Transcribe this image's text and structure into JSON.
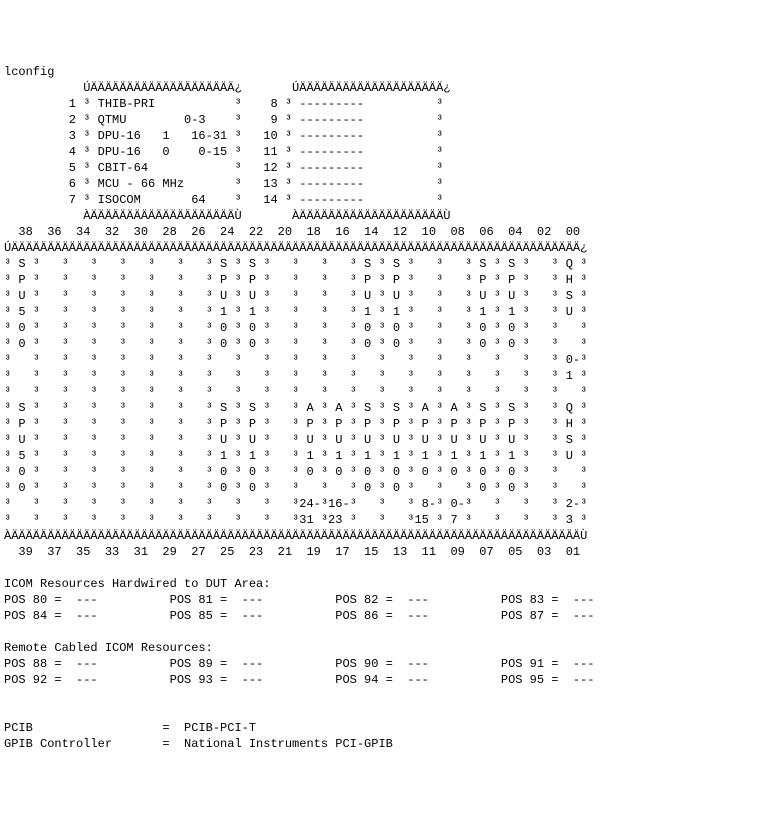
{
  "command": "lconfig",
  "left_box": {
    "rows": [
      {
        "n": "1",
        "label": "THIB-PRI",
        "extra": ""
      },
      {
        "n": "2",
        "label": "QTMU",
        "extra": "0-3"
      },
      {
        "n": "3",
        "label": "DPU-16   1   16-31",
        "extra": ""
      },
      {
        "n": "4",
        "label": "DPU-16   0    0-15",
        "extra": ""
      },
      {
        "n": "5",
        "label": "CBIT-64",
        "extra": ""
      },
      {
        "n": "6",
        "label": "MCU - 66 MHz",
        "extra": ""
      },
      {
        "n": "7",
        "label": "ISOCOM       64",
        "extra": ""
      }
    ]
  },
  "right_box": {
    "rows": [
      {
        "n": "8",
        "label": "---------"
      },
      {
        "n": "9",
        "label": "---------"
      },
      {
        "n": "10",
        "label": "---------"
      },
      {
        "n": "11",
        "label": "---------"
      },
      {
        "n": "12",
        "label": "---------"
      },
      {
        "n": "13",
        "label": "---------"
      },
      {
        "n": "14",
        "label": "---------"
      }
    ]
  },
  "header_top": "  38  36  34  32  30  28  26  24  22  20  18  16  14  12  10  08  06  04  02  00",
  "header_bottom": "  39  37  35  33  31  29  27  25  23  21  19  17  15  13  11  09  07  05  03  01",
  "slot_lines": [
    "³ S ³   ³   ³   ³   ³   ³   ³ S ³ S ³   ³   ³   ³ S ³ S ³   ³   ³ S ³ S ³   ³ Q ³",
    "³ P ³   ³   ³   ³   ³   ³   ³ P ³ P ³   ³   ³   ³ P ³ P ³   ³   ³ P ³ P ³   ³ H ³",
    "³ U ³   ³   ³   ³   ³   ³   ³ U ³ U ³   ³   ³   ³ U ³ U ³   ³   ³ U ³ U ³   ³ S ³",
    "³ 5 ³   ³   ³   ³   ³   ³   ³ 1 ³ 1 ³   ³   ³   ³ 1 ³ 1 ³   ³   ³ 1 ³ 1 ³   ³ U ³",
    "³ 0 ³   ³   ³   ³   ³   ³   ³ 0 ³ 0 ³   ³   ³   ³ 0 ³ 0 ³   ³   ³ 0 ³ 0 ³   ³   ³",
    "³ 0 ³   ³   ³   ³   ³   ³   ³ 0 ³ 0 ³   ³   ³   ³ 0 ³ 0 ³   ³   ³ 0 ³ 0 ³   ³   ³",
    "³   ³   ³   ³   ³   ³   ³   ³   ³   ³   ³   ³   ³   ³   ³   ³   ³   ³   ³   ³ 0-³",
    "³   ³   ³   ³   ³   ³   ³   ³   ³   ³   ³   ³   ³   ³   ³   ³   ³   ³   ³   ³ 1 ³",
    "³   ³   ³   ³   ³   ³   ³   ³   ³   ³   ³   ³   ³   ³   ³   ³   ³   ³   ³   ³   ³",
    "³ S ³   ³   ³   ³   ³   ³   ³ S ³ S ³   ³ A ³ A ³ S ³ S ³ A ³ A ³ S ³ S ³   ³ Q ³",
    "³ P ³   ³   ³   ³   ³   ³   ³ P ³ P ³   ³ P ³ P ³ P ³ P ³ P ³ P ³ P ³ P ³   ³ H ³",
    "³ U ³   ³   ³   ³   ³   ³   ³ U ³ U ³   ³ U ³ U ³ U ³ U ³ U ³ U ³ U ³ U ³   ³ S ³",
    "³ 5 ³   ³   ³   ³   ³   ³   ³ 1 ³ 1 ³   ³ 1 ³ 1 ³ 1 ³ 1 ³ 1 ³ 1 ³ 1 ³ 1 ³   ³ U ³",
    "³ 0 ³   ³   ³   ³   ³   ³   ³ 0 ³ 0 ³   ³ 0 ³ 0 ³ 0 ³ 0 ³ 0 ³ 0 ³ 0 ³ 0 ³   ³   ³",
    "³ 0 ³   ³   ³   ³   ³   ³   ³ 0 ³ 0 ³   ³   ³   ³ 0 ³ 0 ³   ³   ³ 0 ³ 0 ³   ³   ³",
    "³   ³   ³   ³   ³   ³   ³   ³   ³   ³   ³24-³16-³   ³   ³ 8-³ 0-³   ³   ³   ³ 2-³",
    "³   ³   ³   ³   ³   ³   ³   ³   ³   ³   ³31 ³23 ³   ³   ³15 ³ 7 ³   ³   ³   ³ 3 ³"
  ],
  "icom_hardwired": {
    "title": "ICOM Resources Hardwired to DUT Area:",
    "rows": [
      [
        {
          "k": "POS 80",
          "v": "---"
        },
        {
          "k": "POS 81",
          "v": "---"
        },
        {
          "k": "POS 82",
          "v": "---"
        },
        {
          "k": "POS 83",
          "v": "---"
        }
      ],
      [
        {
          "k": "POS 84",
          "v": "---"
        },
        {
          "k": "POS 85",
          "v": "---"
        },
        {
          "k": "POS 86",
          "v": "---"
        },
        {
          "k": "POS 87",
          "v": "---"
        }
      ]
    ]
  },
  "icom_remote": {
    "title": "Remote Cabled ICOM Resources:",
    "rows": [
      [
        {
          "k": "POS 88",
          "v": "---"
        },
        {
          "k": "POS 89",
          "v": "---"
        },
        {
          "k": "POS 90",
          "v": "---"
        },
        {
          "k": "POS 91",
          "v": "---"
        }
      ],
      [
        {
          "k": "POS 92",
          "v": "---"
        },
        {
          "k": "POS 93",
          "v": "---"
        },
        {
          "k": "POS 94",
          "v": "---"
        },
        {
          "k": "POS 95",
          "v": "---"
        }
      ]
    ]
  },
  "footer": [
    {
      "k": "PCIB",
      "v": "PCIB-PCI-T"
    },
    {
      "k": "GPIB Controller",
      "v": "National Instruments PCI-GPIB"
    }
  ],
  "box_chars": {
    "tl": "Ú",
    "tr": "¿",
    "bl": "À",
    "br": "Ù",
    "h": "Ä",
    "v": "³"
  }
}
